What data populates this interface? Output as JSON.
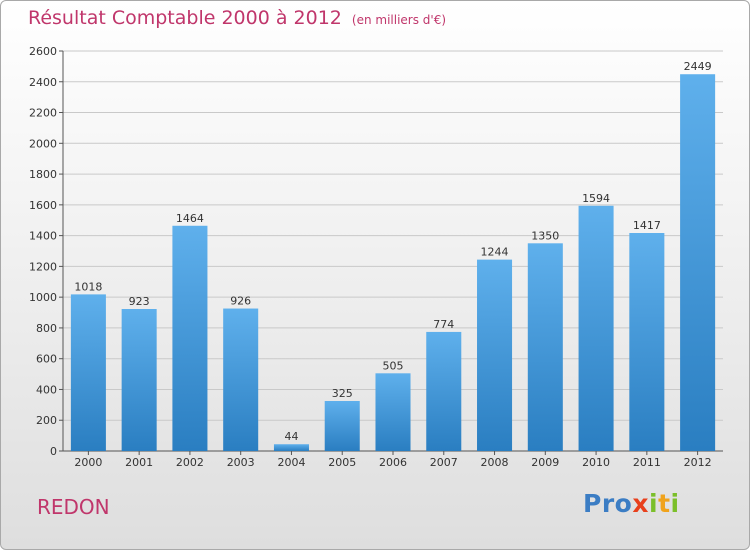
{
  "title": {
    "main": "Résultat Comptable 2000 à 2012",
    "unit": "(en milliers d'€)"
  },
  "city": "REDON",
  "logo": {
    "text": "Proxiti",
    "letters": [
      {
        "char": "P",
        "color": "#3b7dc4"
      },
      {
        "char": "r",
        "color": "#3b7dc4"
      },
      {
        "char": "o",
        "color": "#3b7dc4"
      },
      {
        "char": "x",
        "color": "#e8401c"
      },
      {
        "char": "i",
        "color": "#7bbf2a"
      },
      {
        "char": "t",
        "color": "#f0a31c"
      },
      {
        "char": "i",
        "color": "#7bbf2a"
      }
    ]
  },
  "colors": {
    "bar_top": "#5fb0ec",
    "bar_bottom": "#2a7ec1",
    "title": "#c0366b",
    "grid": "#c9c9c9"
  },
  "chart_data": {
    "type": "bar",
    "categories": [
      "2000",
      "2001",
      "2002",
      "2003",
      "2004",
      "2005",
      "2006",
      "2007",
      "2008",
      "2009",
      "2010",
      "2011",
      "2012"
    ],
    "values": [
      1018,
      923,
      1464,
      926,
      44,
      325,
      505,
      774,
      1244,
      1350,
      1594,
      1417,
      2449
    ],
    "ylim": [
      0,
      2600
    ],
    "yticks": [
      0,
      200,
      400,
      600,
      800,
      1000,
      1200,
      1400,
      1600,
      1800,
      2000,
      2200,
      2400,
      2600
    ],
    "grid": true,
    "data_labels": true
  }
}
